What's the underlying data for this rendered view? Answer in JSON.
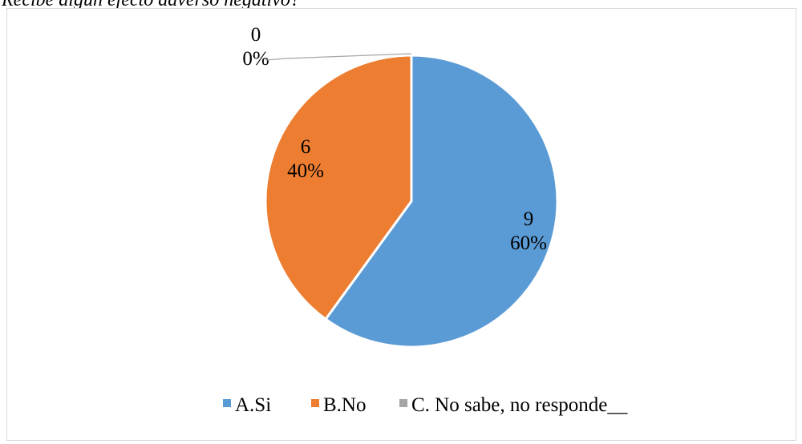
{
  "page": {
    "cropped_caption": "Recibe algún efecto adverso negativo?"
  },
  "chart_data": {
    "type": "pie",
    "title": "",
    "categories": [
      "A.Si",
      "B.No",
      "C.   No sabe, no responde__"
    ],
    "values": [
      9,
      6,
      0
    ],
    "percent_labels": [
      "60%",
      "40%",
      "0%"
    ],
    "colors": [
      "#5B9BD5",
      "#ED7D31",
      "#A5A5A5"
    ],
    "start_angle": "12 o'clock",
    "direction": "clockwise",
    "legend": {
      "position": "bottom"
    }
  }
}
